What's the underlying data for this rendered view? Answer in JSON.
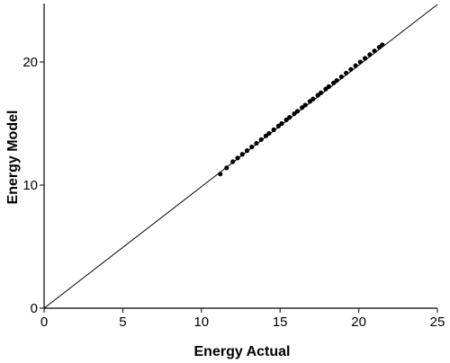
{
  "chart_data": {
    "type": "scatter",
    "title": "",
    "xlabel": "Energy Actual",
    "ylabel": "Energy Model",
    "xlim": [
      0,
      25
    ],
    "ylim": [
      0,
      25
    ],
    "x_ticks": [
      0,
      5,
      10,
      15,
      20,
      25
    ],
    "y_ticks": [
      0,
      10,
      20
    ],
    "x_tick_labels": [
      "0",
      "5",
      "10",
      "15",
      "20",
      "25"
    ],
    "y_tick_labels": [
      "0",
      "10",
      "20"
    ],
    "grid": false,
    "legend": "none",
    "reference_line": {
      "from": [
        0,
        0
      ],
      "to": [
        25,
        25
      ]
    },
    "colors": {
      "marks": "#000000",
      "line": "#000000"
    },
    "series": [
      {
        "points": [
          [
            11.2,
            10.9
          ],
          [
            11.6,
            11.4
          ],
          [
            12.0,
            11.9
          ],
          [
            12.3,
            12.2
          ],
          [
            12.6,
            12.5
          ],
          [
            12.9,
            12.8
          ],
          [
            13.2,
            13.1
          ],
          [
            13.5,
            13.4
          ],
          [
            13.8,
            13.7
          ],
          [
            14.1,
            14.0
          ],
          [
            14.3,
            14.2
          ],
          [
            14.6,
            14.5
          ],
          [
            14.9,
            14.8
          ],
          [
            15.1,
            15.0
          ],
          [
            15.4,
            15.3
          ],
          [
            15.6,
            15.5
          ],
          [
            15.9,
            15.8
          ],
          [
            16.1,
            16.0
          ],
          [
            16.4,
            16.3
          ],
          [
            16.6,
            16.5
          ],
          [
            16.9,
            16.8
          ],
          [
            17.1,
            17.0
          ],
          [
            17.4,
            17.3
          ],
          [
            17.6,
            17.5
          ],
          [
            17.9,
            17.8
          ],
          [
            18.1,
            18.0
          ],
          [
            18.4,
            18.3
          ],
          [
            18.6,
            18.5
          ],
          [
            18.9,
            18.8
          ],
          [
            19.2,
            19.1
          ],
          [
            19.5,
            19.4
          ],
          [
            19.8,
            19.7
          ],
          [
            20.1,
            20.0
          ],
          [
            20.4,
            20.3
          ],
          [
            20.7,
            20.6
          ],
          [
            21.0,
            20.9
          ],
          [
            21.3,
            21.2
          ],
          [
            21.5,
            21.4
          ]
        ]
      }
    ]
  }
}
